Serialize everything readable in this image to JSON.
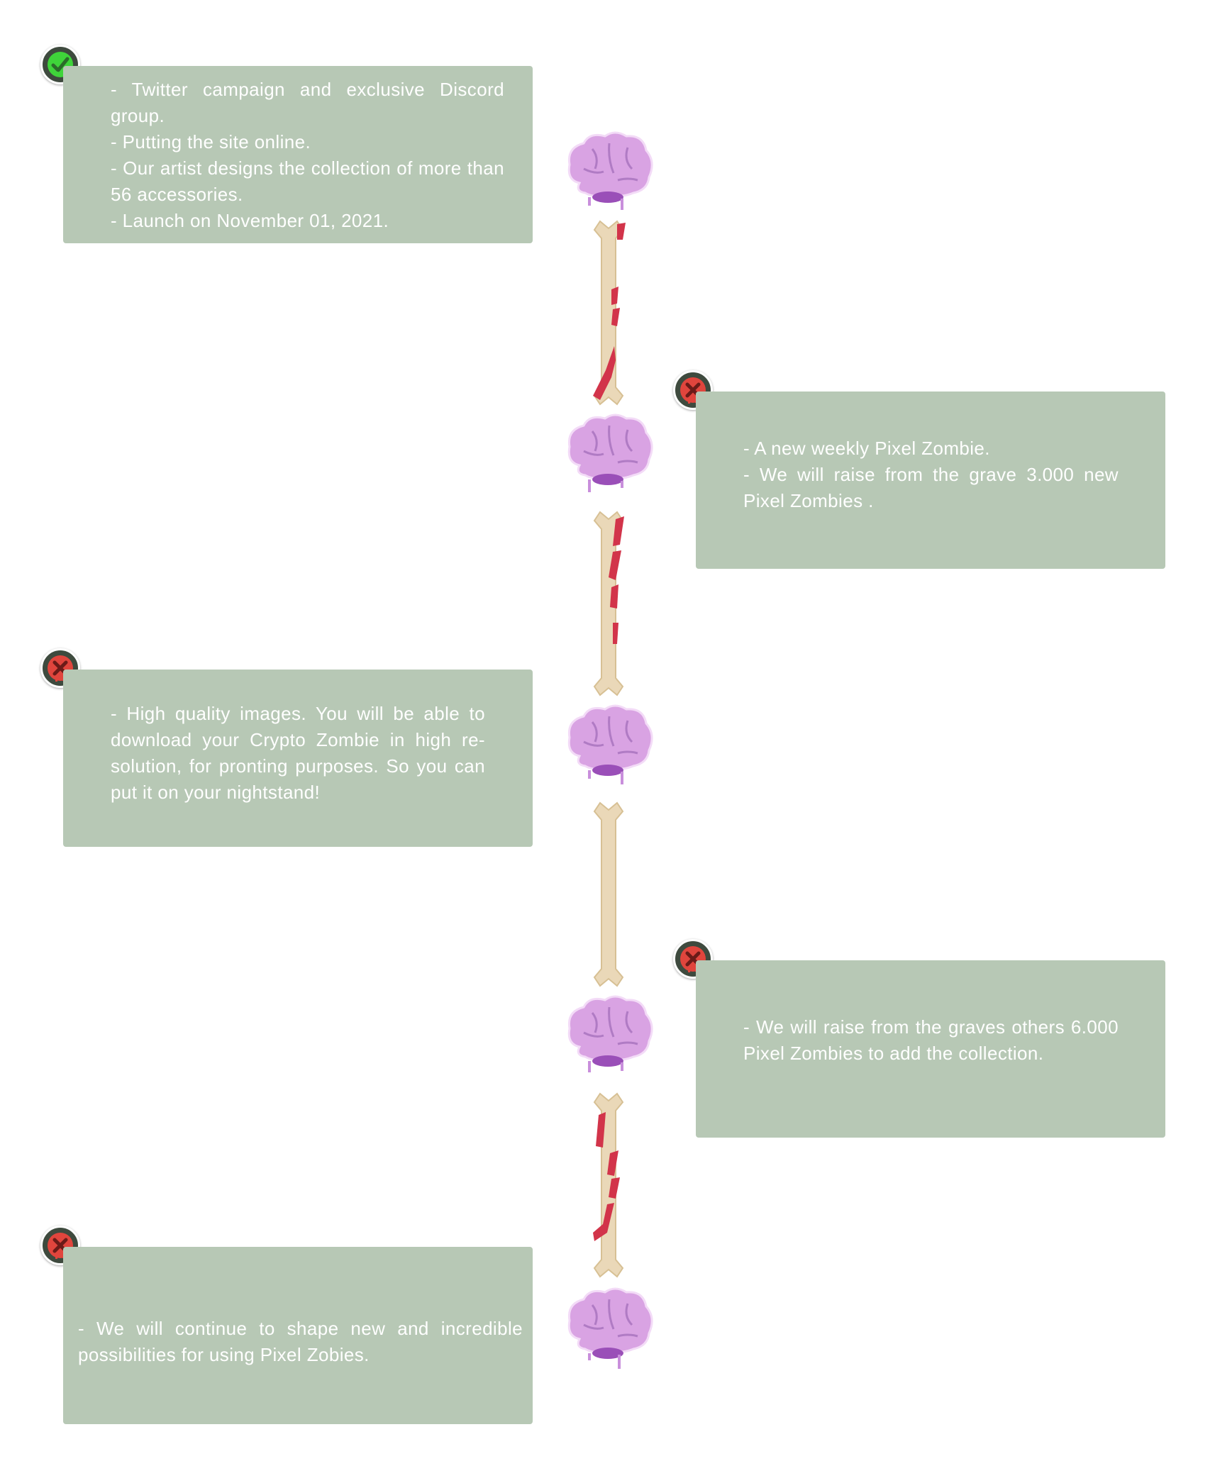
{
  "colors": {
    "card_bg": "#b7c8b5",
    "card_text": "#ffffff",
    "done": "#3fd43a",
    "pending": "#e0453d",
    "brain": "#d9a3e3",
    "bone": "#ead8b8",
    "blood": "#d2344a"
  },
  "roadmap": [
    {
      "status": "done",
      "icon": "check-icon",
      "lines": [
        "- Twitter campaign and exclusive Discord group.",
        "- Putting the site online.",
        "- Our artist designs the collection of more than 56 accessories.",
        "- Launch on November 01, 2021."
      ]
    },
    {
      "status": "pending",
      "icon": "cross-icon",
      "lines": [
        "- A new weekly Pixel Zombie.",
        "- We will raise from the grave 3.000 new Pixel Zombies ."
      ]
    },
    {
      "status": "pending",
      "icon": "cross-icon",
      "lines": [
        "- High quality images. You will be able to download your Crypto Zombie in high re-solution, for pronting purposes. So you can put it on your nightstand!"
      ]
    },
    {
      "status": "pending",
      "icon": "cross-icon",
      "lines": [
        "- We will raise from the graves others 6.000 Pixel Zombies to add the collection."
      ]
    },
    {
      "status": "pending",
      "icon": "cross-icon",
      "lines": [
        "- We will continue to shape new and incredible possibilities for using Pixel Zobies."
      ]
    }
  ],
  "timeline_sprites": [
    {
      "kind": "brain-icon"
    },
    {
      "kind": "bloody-bone-icon"
    },
    {
      "kind": "brain-icon"
    },
    {
      "kind": "bloody-bone-icon"
    },
    {
      "kind": "brain-icon"
    },
    {
      "kind": "clean-bone-icon"
    },
    {
      "kind": "brain-icon"
    },
    {
      "kind": "bloody-bone-icon"
    },
    {
      "kind": "brain-icon"
    }
  ]
}
